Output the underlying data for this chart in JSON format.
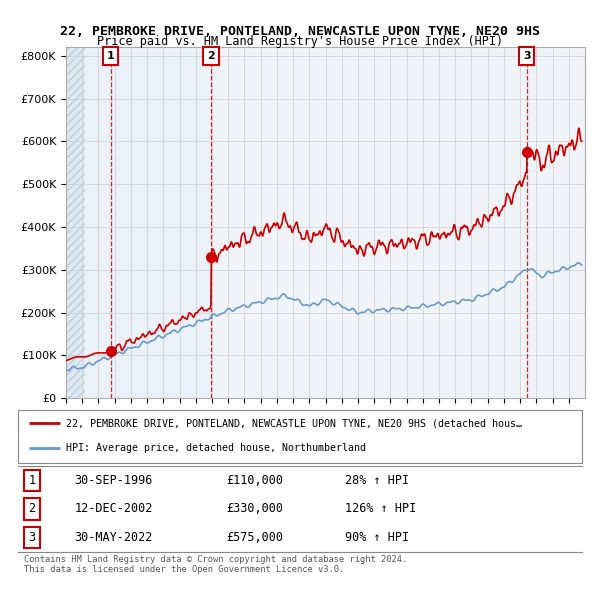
{
  "title": "22, PEMBROKE DRIVE, PONTELAND, NEWCASTLE UPON TYNE, NE20 9HS",
  "subtitle": "Price paid vs. HM Land Registry's House Price Index (HPI)",
  "ylabel_values": [
    "£0",
    "£100K",
    "£200K",
    "£300K",
    "£400K",
    "£500K",
    "£600K",
    "£700K",
    "£800K"
  ],
  "y_ticks": [
    0,
    100000,
    200000,
    300000,
    400000,
    500000,
    600000,
    700000,
    800000
  ],
  "ylim": [
    0,
    820000
  ],
  "xlim_start": 1994.0,
  "xlim_end": 2026.0,
  "sale_dates": [
    1996.75,
    2002.95,
    2022.41
  ],
  "sale_prices": [
    110000,
    330000,
    575000
  ],
  "sale_labels": [
    "1",
    "2",
    "3"
  ],
  "sale_color": "#cc0000",
  "hpi_color": "#6699cc",
  "vline_color": "#cc0000",
  "legend_line1": "22, PEMBROKE DRIVE, PONTELAND, NEWCASTLE UPON TYNE, NE20 9HS (detached hous…",
  "legend_line2": "HPI: Average price, detached house, Northumberland",
  "table_rows": [
    [
      "1",
      "30-SEP-1996",
      "£110,000",
      "28% ↑ HPI"
    ],
    [
      "2",
      "12-DEC-2002",
      "£330,000",
      "126% ↑ HPI"
    ],
    [
      "3",
      "30-MAY-2022",
      "£575,000",
      "90% ↑ HPI"
    ]
  ],
  "footer": "Contains HM Land Registry data © Crown copyright and database right 2024.\nThis data is licensed under the Open Government Licence v3.0.",
  "grid_color": "#cccccc",
  "hatch_color": "#dce8f0"
}
